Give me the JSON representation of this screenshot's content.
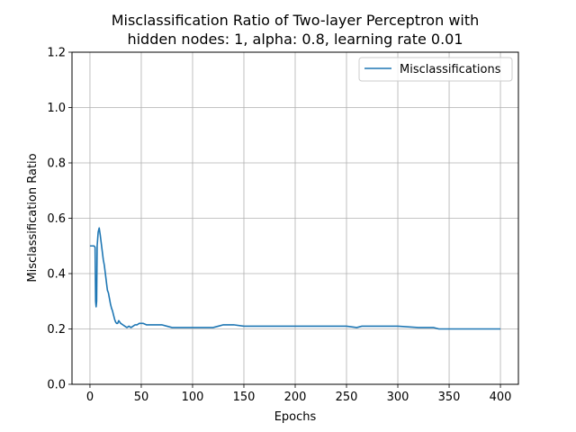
{
  "chart_data": {
    "type": "line",
    "title_line1": "Misclassification Ratio of Two-layer Perceptron with",
    "title_line2": "hidden nodes: 1, alpha: 0.8, learning rate 0.01",
    "xlabel": "Epochs",
    "ylabel": "Misclassification Ratio",
    "xlim": [
      -17.5,
      417.5
    ],
    "ylim": [
      0.0,
      1.2
    ],
    "xticks": [
      0,
      50,
      100,
      150,
      200,
      250,
      300,
      350,
      400
    ],
    "yticks": [
      0.0,
      0.2,
      0.4,
      0.6,
      0.8,
      1.0,
      1.2
    ],
    "xtick_labels": [
      "0",
      "50",
      "100",
      "150",
      "200",
      "250",
      "300",
      "350",
      "400"
    ],
    "ytick_labels": [
      "0.0",
      "0.2",
      "0.4",
      "0.6",
      "0.8",
      "1.0",
      "1.2"
    ],
    "grid": true,
    "legend_position": "top-right",
    "series": [
      {
        "name": "Misclassifications",
        "color": "#1f77b4",
        "x": [
          0,
          4,
          5,
          5.5,
          6,
          6.5,
          7,
          8,
          9,
          10,
          11,
          12,
          13,
          14,
          15,
          16,
          17,
          18,
          19,
          20,
          21,
          22,
          23,
          24,
          25,
          26,
          27,
          28,
          30,
          32,
          34,
          36,
          38,
          40,
          42,
          44,
          46,
          48,
          52,
          55,
          60,
          70,
          75,
          80,
          100,
          120,
          125,
          130,
          140,
          150,
          200,
          250,
          260,
          265,
          300,
          320,
          335,
          340,
          400
        ],
        "y": [
          0.5,
          0.5,
          0.495,
          0.3,
          0.28,
          0.3,
          0.5,
          0.55,
          0.565,
          0.54,
          0.51,
          0.48,
          0.45,
          0.43,
          0.4,
          0.37,
          0.34,
          0.33,
          0.31,
          0.29,
          0.275,
          0.265,
          0.25,
          0.235,
          0.225,
          0.22,
          0.22,
          0.23,
          0.22,
          0.215,
          0.21,
          0.205,
          0.21,
          0.205,
          0.21,
          0.215,
          0.215,
          0.22,
          0.22,
          0.215,
          0.215,
          0.215,
          0.21,
          0.205,
          0.205,
          0.205,
          0.21,
          0.215,
          0.215,
          0.21,
          0.21,
          0.21,
          0.205,
          0.21,
          0.21,
          0.205,
          0.205,
          0.2,
          0.2
        ]
      }
    ]
  }
}
